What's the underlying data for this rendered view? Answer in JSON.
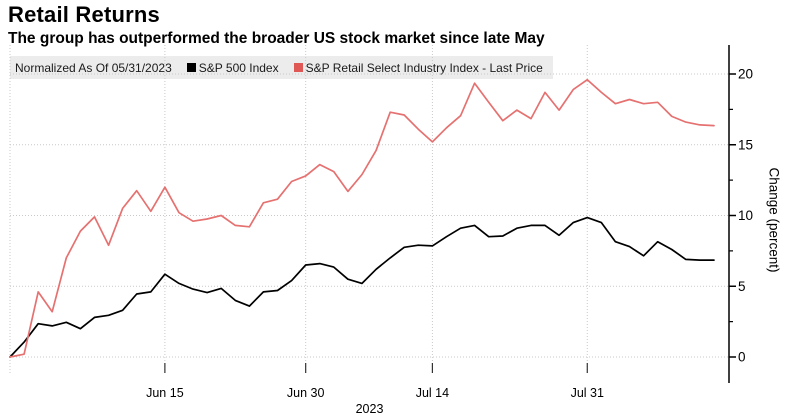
{
  "header": {
    "title": "Retail Returns",
    "subtitle": "The group has outperformed the broader US stock market since late May"
  },
  "legend": {
    "note": "Normalized As Of 05/31/2023",
    "items": [
      {
        "label": "S&P 500 Index",
        "color": "#000000"
      },
      {
        "label": "S&P Retail Select Industry Index - Last Price",
        "color": "#e05856"
      }
    ]
  },
  "chart_data": {
    "type": "line",
    "title": "Retail Returns",
    "subtitle": "The group has outperformed the broader US stock market since late May",
    "xlabel": "2023",
    "ylabel": "Change (percent)",
    "ylim": [
      -2,
      22
    ],
    "yticks": [
      0,
      5,
      10,
      15,
      20
    ],
    "grid": true,
    "legend_position": "top",
    "x_dates": [
      "05/31",
      "06/01",
      "06/02",
      "06/05",
      "06/06",
      "06/07",
      "06/08",
      "06/09",
      "06/12",
      "06/13",
      "06/14",
      "06/15",
      "06/16",
      "06/20",
      "06/21",
      "06/22",
      "06/23",
      "06/26",
      "06/27",
      "06/28",
      "06/29",
      "06/30",
      "07/03",
      "07/05",
      "07/06",
      "07/07",
      "07/10",
      "07/11",
      "07/12",
      "07/13",
      "07/14",
      "07/17",
      "07/18",
      "07/19",
      "07/20",
      "07/21",
      "07/24",
      "07/25",
      "07/26",
      "07/27",
      "07/28",
      "07/31",
      "08/01",
      "08/02",
      "08/03",
      "08/04",
      "08/07",
      "08/08",
      "08/09",
      "08/10",
      "08/11"
    ],
    "xtick_labels": [
      "Jun 15",
      "Jun 30",
      "Jul 14",
      "Jul 31"
    ],
    "xtick_indices": [
      11,
      21,
      30,
      41
    ],
    "extra_grid_indices": [
      0
    ],
    "series": [
      {
        "name": "S&P 500 Index",
        "color": "#000000",
        "values": [
          0.0,
          1.05,
          2.35,
          2.2,
          2.45,
          2.0,
          2.8,
          2.95,
          3.3,
          4.45,
          4.6,
          5.85,
          5.2,
          4.8,
          4.55,
          4.85,
          4.0,
          3.6,
          4.6,
          4.7,
          5.4,
          6.5,
          6.6,
          6.35,
          5.5,
          5.2,
          6.2,
          7.0,
          7.75,
          7.9,
          7.85,
          8.5,
          9.1,
          9.3,
          8.5,
          8.55,
          9.1,
          9.3,
          9.3,
          8.6,
          9.5,
          9.85,
          9.5,
          8.15,
          7.8,
          7.15,
          8.15,
          7.6,
          6.9,
          6.85,
          6.85
        ]
      },
      {
        "name": "S&P Retail Select Industry Index - Last Price",
        "color": "#e57170",
        "values": [
          0.0,
          0.2,
          4.6,
          3.2,
          7.0,
          8.9,
          9.9,
          7.9,
          10.5,
          11.75,
          10.3,
          12.0,
          10.2,
          9.6,
          9.75,
          10.0,
          9.3,
          9.2,
          10.9,
          11.15,
          12.4,
          12.8,
          13.6,
          13.1,
          11.7,
          12.9,
          14.6,
          17.3,
          17.1,
          16.1,
          15.2,
          16.2,
          17.05,
          19.35,
          18.0,
          16.7,
          17.45,
          16.85,
          18.7,
          17.45,
          18.9,
          19.6,
          18.7,
          17.9,
          18.2,
          17.9,
          18.0,
          17.0,
          16.6,
          16.4,
          16.35
        ]
      }
    ]
  }
}
